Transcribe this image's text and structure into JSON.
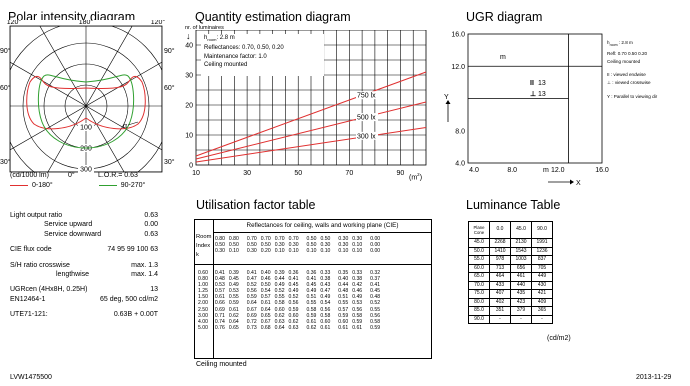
{
  "polar": {
    "title": "Polar intensity diagram",
    "angles_top": [
      "120°",
      "180°",
      "120°"
    ],
    "angles_left": [
      "90°",
      "60°",
      "30°"
    ],
    "angles_right": [
      "90°",
      "60°",
      "30°"
    ],
    "rings": [
      "100",
      "200",
      "300",
      "400"
    ],
    "marker": "α",
    "unit": "(cd/1000 lm)",
    "zero": "0°",
    "lor": "L.O.R.= 0.63",
    "legend": [
      "0-180°",
      "90-270°"
    ],
    "colors": {
      "c0_180": "#e03030",
      "c90_270": "#30a030"
    }
  },
  "specs": {
    "light_output_ratio": {
      "label": "Light output ratio",
      "value": "0.63"
    },
    "service_upward": {
      "label": "Service upward",
      "value": "0.00"
    },
    "service_downward": {
      "label": "Service downward",
      "value": "0.63"
    },
    "cie_flux_code": {
      "label": "CIE flux code",
      "value": "74 95 99 100 63"
    },
    "sh_crosswise": {
      "label": "S/H ratio crosswise",
      "value": "max. 1.3"
    },
    "sh_lengthwise": {
      "label": "lengthwise",
      "value": "max. 1.4"
    },
    "ugr": {
      "label": "UGRcen (4Hx8H, 0.25H)",
      "value": "13"
    },
    "en": {
      "label": "EN12464-1",
      "value": "65 deg, 500 cd/m2"
    },
    "ute": {
      "label": "UTE71-121:",
      "value": "0.63B + 0.00T"
    }
  },
  "quantity": {
    "title": "Quantity estimation diagram",
    "ylabel": "nr. of luminaires",
    "info": [
      "h",
      "room",
      ": 2.8 m",
      "Reflectances: 0.70, 0.50, 0.20",
      "Maintenance factor: 1.0",
      "Ceiling mounted"
    ],
    "xunit": "(m",
    "xunit_sup": "2",
    "xunit_end": ")"
  },
  "chart_data": {
    "type": "line",
    "x_ticks": [
      "10",
      "30",
      "50",
      "70",
      "90"
    ],
    "y_ticks": [
      "0",
      "10",
      "20",
      "30",
      "40"
    ],
    "xlim": [
      10,
      100
    ],
    "ylim": [
      0,
      45
    ],
    "series": [
      {
        "name": "750 lx",
        "x": [
          10,
          100
        ],
        "y": [
          3,
          31
        ]
      },
      {
        "name": "500 lx",
        "x": [
          10,
          100
        ],
        "y": [
          2,
          21
        ]
      },
      {
        "name": "300 lx",
        "x": [
          10,
          100
        ],
        "y": [
          1,
          12.5
        ]
      }
    ],
    "color": "#e03030"
  },
  "ugr": {
    "title": "UGR diagram",
    "y_ticks": [
      "16.0",
      "12.0",
      "8.0",
      "4.0"
    ],
    "x_ticks": [
      "4.0",
      "8.0",
      "12.0",
      "16.0"
    ],
    "axis_unit_y": "m",
    "axis_unit_x": "m",
    "y_axis": "Y",
    "x_axis": "X",
    "plot_labels": [
      "13",
      "13"
    ],
    "info": [
      "h",
      "room",
      " : 2.8 m",
      "Refl: 0.70 0.50 0.20",
      "Ceiling mounted"
    ],
    "legend": [
      "II : viewed endwise",
      "⊥ : viewed crosswise",
      "Y : Parallel to viewing dir"
    ]
  },
  "utilisation": {
    "title": "Utilisation factor table",
    "header": "Reflectances for ceiling, walls and working plane (CIE)",
    "room_label": [
      "Room",
      "Index",
      "k"
    ],
    "refl_rows": [
      [
        "0.80",
        "0.80",
        "0.70",
        "0.70",
        "0.70",
        "0.70",
        "0.50",
        "0.50",
        "0.30",
        "0.30",
        "0.00"
      ],
      [
        "0.50",
        "0.50",
        "0.50",
        "0.50",
        "0.30",
        "0.30",
        "0.50",
        "0.30",
        "0.30",
        "0.10",
        "0.00"
      ],
      [
        "0.30",
        "0.10",
        "0.30",
        "0.20",
        "0.10",
        "0.10",
        "0.10",
        "0.10",
        "0.10",
        "0.10",
        "0.00"
      ]
    ],
    "rows": [
      [
        "0.60",
        "0.41",
        "0.39",
        "0.41",
        "0.40",
        "0.39",
        "0.36",
        "0.36",
        "0.33",
        "0.35",
        "0.33",
        "0.32"
      ],
      [
        "0.80",
        "0.48",
        "0.45",
        "0.47",
        "0.46",
        "0.44",
        "0.41",
        "0.41",
        "0.38",
        "0.40",
        "0.38",
        "0.37"
      ],
      [
        "1.00",
        "0.53",
        "0.49",
        "0.52",
        "0.50",
        "0.49",
        "0.45",
        "0.45",
        "0.43",
        "0.44",
        "0.42",
        "0.41"
      ],
      [
        "1.25",
        "0.57",
        "0.53",
        "0.56",
        "0.54",
        "0.52",
        "0.49",
        "0.49",
        "0.47",
        "0.48",
        "0.46",
        "0.45"
      ],
      [
        "1.50",
        "0.61",
        "0.55",
        "0.59",
        "0.57",
        "0.55",
        "0.52",
        "0.51",
        "0.49",
        "0.51",
        "0.49",
        "0.48"
      ],
      [
        "2.00",
        "0.66",
        "0.59",
        "0.64",
        "0.61",
        "0.58",
        "0.56",
        "0.55",
        "0.54",
        "0.55",
        "0.53",
        "0.52"
      ],
      [
        "2.50",
        "0.69",
        "0.61",
        "0.67",
        "0.64",
        "0.60",
        "0.59",
        "0.58",
        "0.56",
        "0.57",
        "0.56",
        "0.55"
      ],
      [
        "3.00",
        "0.71",
        "0.62",
        "0.69",
        "0.65",
        "0.62",
        "0.60",
        "0.59",
        "0.58",
        "0.59",
        "0.58",
        "0.56"
      ],
      [
        "4.00",
        "0.74",
        "0.64",
        "0.72",
        "0.67",
        "0.63",
        "0.62",
        "0.61",
        "0.60",
        "0.60",
        "0.59",
        "0.58"
      ],
      [
        "5.00",
        "0.76",
        "0.65",
        "0.73",
        "0.68",
        "0.64",
        "0.63",
        "0.62",
        "0.61",
        "0.61",
        "0.61",
        "0.59"
      ]
    ],
    "footer": "Ceiling mounted"
  },
  "luminance": {
    "title": "Luminance Table",
    "head": [
      "Plane\nCone",
      "0.0",
      "45.0",
      "90.0"
    ],
    "rows": [
      [
        "45.0",
        "2268",
        "2130",
        "1991"
      ],
      [
        "50.0",
        "1410",
        "1543",
        "1236"
      ],
      [
        "55.0",
        "978",
        "1003",
        "837"
      ],
      [
        "60.0",
        "713",
        "656",
        "705"
      ],
      [
        "65.0",
        "464",
        "461",
        "449"
      ],
      [
        "70.0",
        "433",
        "440",
        "430"
      ],
      [
        "75.0",
        "407",
        "435",
        "421"
      ],
      [
        "80.0",
        "402",
        "423",
        "409"
      ],
      [
        "85.0",
        "351",
        "379",
        "365"
      ],
      [
        "90.0",
        "-",
        "-",
        "-"
      ]
    ],
    "unit": "(cd/m2)"
  },
  "footer": {
    "code": "LVW1475500",
    "date": "2013-11-29"
  }
}
